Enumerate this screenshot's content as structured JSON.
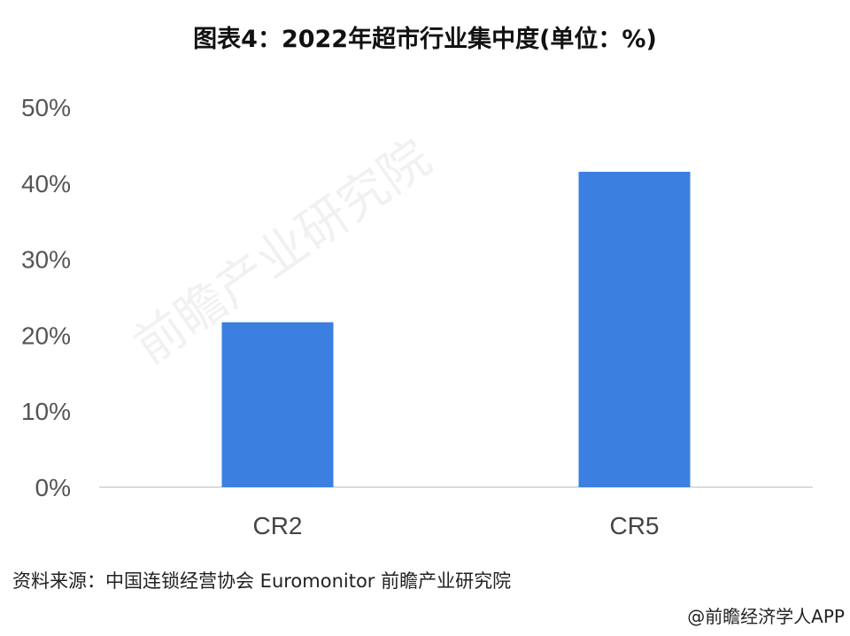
{
  "chart_data": {
    "type": "bar",
    "title": "图表4：2022年超市行业集中度(单位：%)",
    "categories": [
      "CR2",
      "CR5"
    ],
    "values": [
      21.7,
      41.5
    ],
    "ylim": [
      0,
      50
    ],
    "yticks": [
      "0%",
      "10%",
      "20%",
      "30%",
      "40%",
      "50%"
    ],
    "xlabel": "",
    "ylabel": "",
    "grid": false,
    "bar_color": "#3b7fe0",
    "axis_color": "#d0d0d0"
  },
  "source": "资料来源：中国连锁经营协会 Euromonitor 前瞻产业研究院",
  "credit": "@前瞻经济学人APP",
  "watermark": "前瞻产业研究院"
}
